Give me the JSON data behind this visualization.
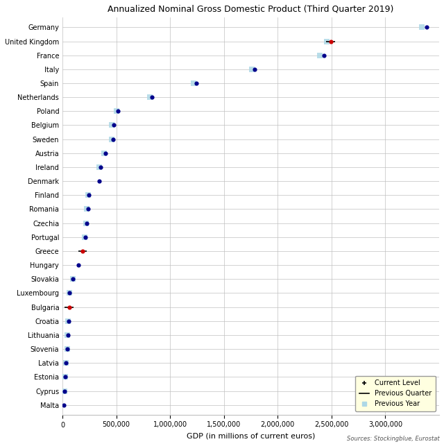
{
  "title": "Annualized Nominal Gross Domestic Product (Third Quarter 2019)",
  "xlabel": "GDP (in millions of current euros)",
  "source": "Sources: Stockingblue, Eurostat",
  "countries": [
    "Germany",
    "United Kingdom",
    "France",
    "Italy",
    "Spain",
    "Netherlands",
    "Poland",
    "Belgium",
    "Sweden",
    "Austria",
    "Ireland",
    "Denmark",
    "Finland",
    "Romania",
    "Czechia",
    "Portugal",
    "Greece",
    "Hungary",
    "Slovakia",
    "Luxembourg",
    "Bulgaria",
    "Croatia",
    "Lithuania",
    "Slovenia",
    "Latvia",
    "Estonia",
    "Cyprus",
    "Malta"
  ],
  "current": [
    3386000,
    2491000,
    2427000,
    1786000,
    1245000,
    830000,
    516000,
    476000,
    471000,
    398000,
    354000,
    340000,
    243000,
    235000,
    228000,
    213000,
    185000,
    150000,
    98000,
    65000,
    62000,
    56000,
    48000,
    46000,
    31000,
    27000,
    21000,
    13000
  ],
  "prev_quarter": [
    null,
    2491000,
    null,
    null,
    null,
    null,
    null,
    null,
    null,
    null,
    null,
    null,
    null,
    null,
    null,
    null,
    185000,
    null,
    null,
    null,
    62000,
    null,
    null,
    null,
    null,
    null,
    null,
    null
  ],
  "prev_year": [
    3340000,
    2455000,
    2388000,
    1762000,
    1220000,
    810000,
    500000,
    460000,
    458000,
    385000,
    342000,
    null,
    235000,
    226000,
    218000,
    206000,
    null,
    null,
    95000,
    63000,
    null,
    54000,
    46000,
    44000,
    29000,
    26000,
    20000,
    null
  ],
  "current_color_default": "#00008B",
  "current_color_red": "#CC0000",
  "prev_year_color": "#ADD8E6",
  "background_color": "#FFFFFF",
  "xlim": [
    0,
    3500000
  ],
  "xticks": [
    0,
    500000,
    1000000,
    1500000,
    2000000,
    2500000,
    3000000
  ],
  "red_countries": [
    "United Kingdom",
    "Greece",
    "Bulgaria"
  ]
}
